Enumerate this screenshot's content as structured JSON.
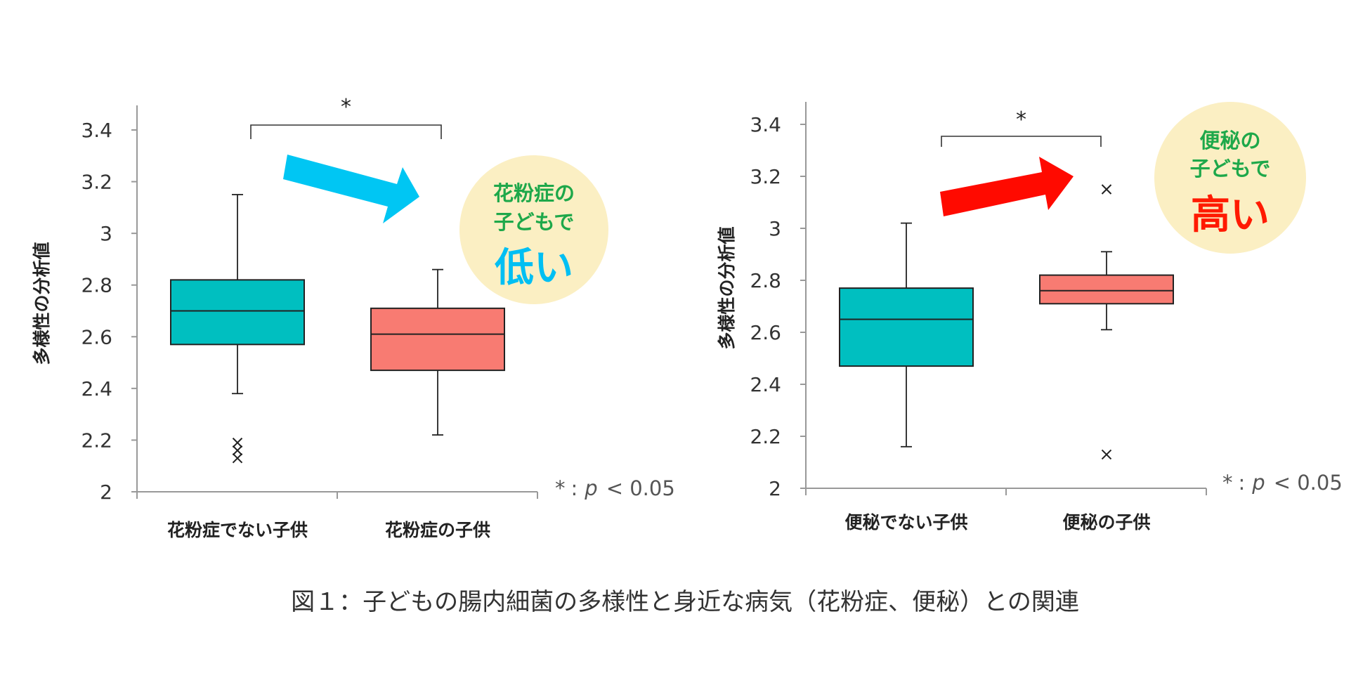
{
  "colors": {
    "teal": "#00BFC0",
    "salmon": "#F87B72",
    "axis": "#999999",
    "arrow_down": "#00C6F3",
    "arrow_up": "#FF0A00",
    "bubble": "#FBEFC3",
    "bubble_green": "#1EA84A",
    "bubble_low": "#00BFF3",
    "bubble_high": "#FF1A00"
  },
  "caption": "図１：子どもの腸内細菌の多様性と身近な病気（花粉症、便秘）との関連",
  "chart_data": [
    {
      "type": "box",
      "ylabel": "多様性の分析値",
      "ylim": [
        2,
        3.5
      ],
      "yticks": [
        "2",
        "2.2",
        "2.4",
        "2.6",
        "2.8",
        "3",
        "3.2",
        "3.4"
      ],
      "ytick_values": [
        2,
        2.2,
        2.4,
        2.6,
        2.8,
        3,
        3.2,
        3.4
      ],
      "categories": [
        "花粉症でない子供",
        "花粉症の子供"
      ],
      "boxes": [
        {
          "min": 2.38,
          "q1": 2.57,
          "median": 2.7,
          "q3": 2.82,
          "max": 3.15,
          "outliers": [
            2.19,
            2.16,
            2.13
          ],
          "color_key": "teal"
        },
        {
          "min": 2.22,
          "q1": 2.47,
          "median": 2.61,
          "q3": 2.71,
          "max": 2.86,
          "outliers": [],
          "color_key": "salmon"
        }
      ],
      "significance": {
        "label": "*",
        "between": [
          0,
          1
        ]
      },
      "pvalue_note": {
        "star": "*",
        "colon": ":",
        "p": "p",
        "rest": "< 0.05"
      },
      "callout": {
        "line1": "花粉症の",
        "line2": "子どもで",
        "big": "低い",
        "trend": "down"
      }
    },
    {
      "type": "box",
      "ylabel": "多様性の分析値",
      "ylim": [
        2,
        3.5
      ],
      "yticks": [
        "2",
        "2.2",
        "2.4",
        "2.6",
        "2.8",
        "3",
        "3.2",
        "3.4"
      ],
      "ytick_values": [
        2,
        2.2,
        2.4,
        2.6,
        2.8,
        3,
        3.2,
        3.4
      ],
      "categories": [
        "便秘でない子供",
        "便秘の子供"
      ],
      "boxes": [
        {
          "min": 2.16,
          "q1": 2.47,
          "median": 2.65,
          "q3": 2.77,
          "max": 3.02,
          "outliers": [],
          "color_key": "teal"
        },
        {
          "min": 2.61,
          "q1": 2.71,
          "median": 2.76,
          "q3": 2.82,
          "max": 2.91,
          "outliers": [
            3.15,
            2.13
          ],
          "color_key": "salmon"
        }
      ],
      "significance": {
        "label": "*",
        "between": [
          0,
          1
        ]
      },
      "pvalue_note": {
        "star": "*",
        "colon": ":",
        "p": "p",
        "rest": "< 0.05"
      },
      "callout": {
        "line1": "便秘の",
        "line2": "子どもで",
        "big": "高い",
        "trend": "up"
      }
    }
  ]
}
